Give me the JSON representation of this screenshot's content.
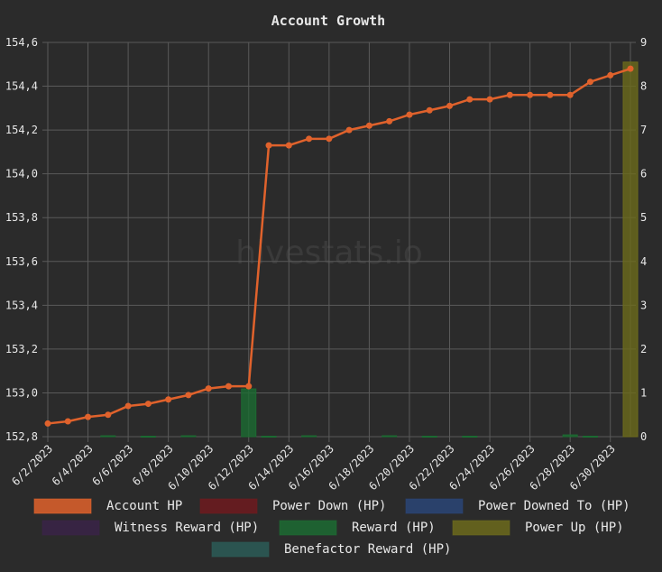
{
  "chart_data": {
    "type": "bar-line",
    "title": "Account Growth",
    "watermark": "hivestats.io",
    "categories": [
      "6/2/2023",
      null,
      "6/4/2023",
      null,
      "6/6/2023",
      null,
      "6/8/2023",
      null,
      "6/10/2023",
      null,
      "6/12/2023",
      null,
      "6/14/2023",
      null,
      "6/16/2023",
      null,
      "6/18/2023",
      null,
      "6/20/2023",
      null,
      "6/22/2023",
      null,
      "6/24/2023",
      null,
      "6/26/2023",
      null,
      "6/28/2023",
      null,
      "6/30/2023",
      null
    ],
    "ylim": [
      152.8,
      154.6
    ],
    "yticks": [
      {
        "value": 152.8,
        "label": "152,8"
      },
      {
        "value": 153.0,
        "label": "153,0"
      },
      {
        "value": 153.2,
        "label": "153,2"
      },
      {
        "value": 153.4,
        "label": "153,4"
      },
      {
        "value": 153.6,
        "label": "153,6"
      },
      {
        "value": 153.8,
        "label": "153,8"
      },
      {
        "value": 154.0,
        "label": "154,0"
      },
      {
        "value": 154.2,
        "label": "154,2"
      },
      {
        "value": 154.4,
        "label": "154,4"
      },
      {
        "value": 154.6,
        "label": "154,6"
      }
    ],
    "y2lim": [
      0,
      9
    ],
    "y2ticks": [
      0,
      1,
      2,
      3,
      4,
      5,
      6,
      7,
      8,
      9
    ],
    "grid": true,
    "series": [
      {
        "name": "Account HP",
        "type": "line",
        "color": "#e0622c",
        "values": [
          152.86,
          152.87,
          152.89,
          152.9,
          152.94,
          152.95,
          152.97,
          152.99,
          153.02,
          153.03,
          153.03,
          154.13,
          154.13,
          154.16,
          154.16,
          154.2,
          154.22,
          154.24,
          154.27,
          154.29,
          154.31,
          154.34,
          154.34,
          154.36,
          154.36,
          154.36,
          154.36,
          154.42,
          154.45,
          154.48
        ]
      },
      {
        "name": "Power Down (HP)",
        "type": "bar",
        "axis": "y2",
        "color": "#6e1a1e",
        "values": [
          null,
          null,
          null,
          null,
          null,
          null,
          null,
          null,
          null,
          null,
          null,
          null,
          null,
          null,
          null,
          null,
          null,
          null,
          null,
          null,
          null,
          null,
          null,
          null,
          null,
          null,
          null,
          null,
          null,
          null
        ]
      },
      {
        "name": "Power Downed To (HP)",
        "type": "bar",
        "axis": "y2",
        "color": "#2a4577",
        "values": [
          null,
          null,
          null,
          null,
          null,
          null,
          null,
          null,
          null,
          null,
          null,
          null,
          null,
          null,
          null,
          null,
          null,
          null,
          null,
          null,
          null,
          null,
          null,
          null,
          null,
          null,
          null,
          null,
          null,
          null
        ]
      },
      {
        "name": "Witness Reward (HP)",
        "type": "bar",
        "axis": "y2",
        "color": "#3a2348",
        "values": [
          null,
          null,
          null,
          null,
          null,
          null,
          null,
          null,
          null,
          null,
          null,
          null,
          null,
          null,
          null,
          null,
          null,
          null,
          null,
          null,
          null,
          null,
          null,
          null,
          null,
          null,
          null,
          null,
          null,
          null
        ]
      },
      {
        "name": "Reward (HP)",
        "type": "bar",
        "axis": "y2",
        "color": "#1c6b32",
        "values": [
          null,
          null,
          null,
          0.02,
          null,
          0.01,
          null,
          0.02,
          null,
          null,
          1.09,
          0.01,
          null,
          0.02,
          null,
          null,
          null,
          0.02,
          null,
          0.01,
          null,
          0.01,
          null,
          null,
          null,
          null,
          0.04,
          0.01,
          null,
          null
        ]
      },
      {
        "name": "Power Up (HP)",
        "type": "bar",
        "axis": "y2",
        "color": "#6c6a1c",
        "values": [
          null,
          null,
          null,
          null,
          null,
          null,
          null,
          null,
          null,
          null,
          null,
          null,
          null,
          null,
          null,
          null,
          null,
          null,
          null,
          null,
          null,
          null,
          null,
          null,
          null,
          null,
          null,
          null,
          null,
          8.55
        ]
      },
      {
        "name": "Benefactor Reward (HP)",
        "type": "bar",
        "axis": "y2",
        "color": "#2c5c57",
        "values": [
          null,
          null,
          null,
          null,
          null,
          null,
          null,
          null,
          null,
          null,
          null,
          null,
          null,
          null,
          null,
          null,
          null,
          null,
          null,
          null,
          null,
          null,
          null,
          null,
          null,
          null,
          null,
          null,
          null,
          null
        ]
      }
    ]
  }
}
